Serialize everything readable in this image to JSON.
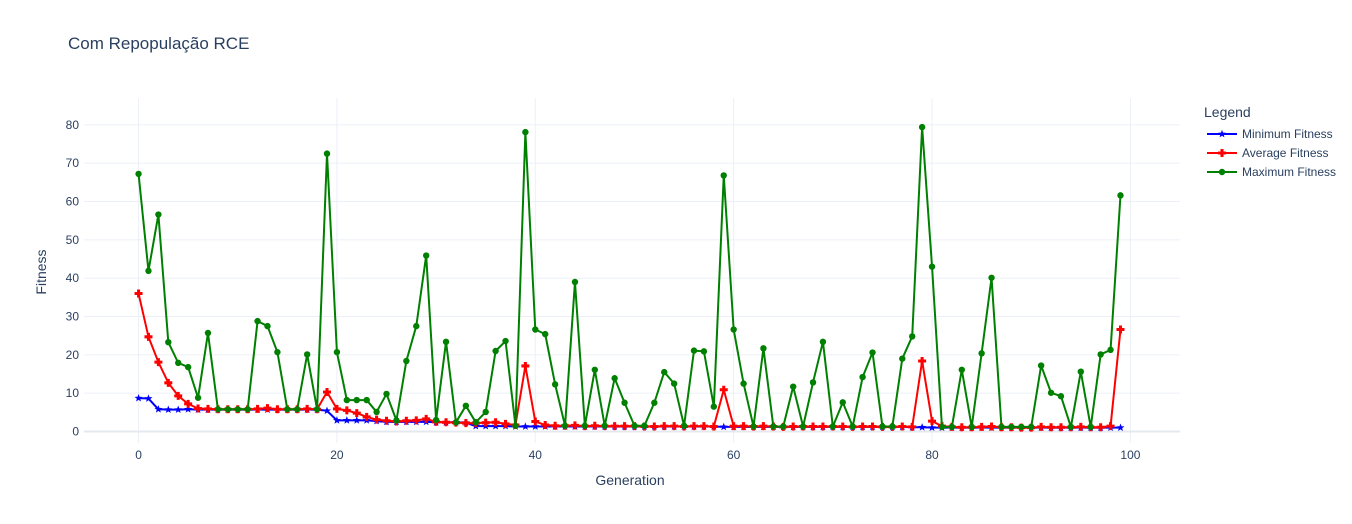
{
  "chart_data": {
    "type": "line",
    "title": "Com Repopulação RCE",
    "xlabel": "Generation",
    "ylabel": "Fitness",
    "xlim": [
      -5.5,
      105
    ],
    "ylim": [
      -3,
      87
    ],
    "xticks": [
      0,
      20,
      40,
      60,
      80,
      100
    ],
    "yticks": [
      0,
      10,
      20,
      30,
      40,
      50,
      60,
      70,
      80
    ],
    "grid": true,
    "legend_title": "Legend",
    "legend_position": "right",
    "series": [
      {
        "name": "Minimum Fitness",
        "color": "#0000ff",
        "marker": "star",
        "y": [
          8.7,
          8.6,
          5.8,
          5.7,
          5.7,
          5.8,
          5.7,
          5.7,
          5.7,
          5.7,
          5.7,
          5.7,
          5.7,
          5.7,
          5.7,
          5.7,
          5.7,
          5.7,
          5.7,
          5.4,
          2.9,
          2.9,
          2.9,
          2.9,
          2.7,
          2.5,
          2.5,
          2.5,
          2.5,
          2.5,
          2.4,
          2.4,
          2.4,
          2.3,
          1.4,
          1.4,
          1.4,
          1.4,
          1.3,
          1.3,
          1.3,
          1.3,
          1.3,
          1.3,
          1.3,
          1.3,
          1.3,
          1.3,
          1.3,
          1.3,
          1.3,
          1.3,
          1.3,
          1.3,
          1.3,
          1.3,
          1.3,
          1.3,
          1.3,
          1.2,
          1.2,
          1.2,
          1.2,
          1.2,
          1.2,
          1.2,
          1.2,
          1.2,
          1.2,
          1.2,
          1.2,
          1.2,
          1.2,
          1.2,
          1.2,
          1.2,
          1.2,
          1.2,
          1.1,
          1.1,
          1.0,
          1.0,
          1.0,
          1.0,
          1.0,
          1.0,
          1.0,
          1.0,
          1.0,
          1.0,
          1.0,
          1.0,
          1.0,
          1.0,
          1.0,
          1.0,
          1.0,
          1.0,
          1.0,
          1.0
        ]
      },
      {
        "name": "Average Fitness",
        "color": "#ff0000",
        "marker": "cross",
        "y": [
          36,
          24.7,
          18.1,
          12.7,
          9.3,
          7.2,
          6.0,
          5.9,
          5.8,
          5.8,
          5.8,
          5.8,
          5.9,
          6.1,
          5.8,
          5.8,
          5.8,
          5.9,
          5.8,
          10.3,
          5.9,
          5.5,
          4.8,
          3.8,
          3.1,
          2.8,
          2.6,
          2.8,
          2.9,
          3.3,
          2.5,
          2.4,
          2.3,
          2.2,
          2.2,
          2.3,
          2.4,
          2.0,
          1.7,
          17.1,
          2.6,
          1.7,
          1.5,
          1.5,
          1.6,
          1.4,
          1.5,
          1.4,
          1.4,
          1.4,
          1.4,
          1.3,
          1.3,
          1.4,
          1.4,
          1.3,
          1.4,
          1.4,
          1.3,
          10.9,
          1.4,
          1.4,
          1.3,
          1.4,
          1.3,
          1.2,
          1.3,
          1.3,
          1.3,
          1.3,
          1.3,
          1.3,
          1.2,
          1.3,
          1.3,
          1.2,
          1.2,
          1.3,
          1.2,
          18.4,
          2.7,
          1.4,
          1.2,
          1.1,
          1.1,
          1.2,
          1.3,
          1.1,
          1.1,
          1.0,
          1.0,
          1.2,
          1.1,
          1.1,
          1.1,
          1.2,
          1.1,
          1.1,
          1.4,
          26.6
        ]
      },
      {
        "name": "Maximum Fitness",
        "color": "#008000",
        "marker": "circle",
        "y": [
          67.2,
          41.9,
          56.6,
          23.3,
          17.9,
          16.8,
          8.8,
          25.7,
          5.8,
          5.8,
          5.8,
          5.8,
          28.8,
          27.5,
          20.7,
          5.8,
          5.8,
          20.1,
          5.8,
          72.5,
          20.7,
          8.2,
          8.2,
          8.2,
          5.1,
          9.8,
          2.9,
          18.4,
          27.5,
          45.9,
          3.0,
          23.4,
          2.4,
          6.7,
          2.4,
          5.1,
          21.0,
          23.6,
          1.5,
          78.1,
          26.6,
          25.4,
          12.3,
          1.5,
          39.0,
          1.5,
          16.1,
          1.5,
          13.9,
          7.5,
          1.5,
          1.5,
          7.5,
          15.5,
          12.5,
          1.5,
          21.1,
          20.9,
          6.5,
          66.8,
          26.6,
          12.5,
          1.3,
          21.7,
          1.3,
          1.3,
          11.7,
          1.3,
          12.8,
          23.4,
          1.3,
          7.6,
          1.3,
          14.2,
          20.6,
          1.3,
          1.3,
          19.0,
          24.8,
          79.4,
          43.0,
          1.2,
          1.2,
          16.1,
          1.2,
          20.4,
          40.1,
          1.2,
          1.2,
          1.2,
          1.2,
          17.2,
          10.1,
          9.2,
          1.2,
          15.6,
          1.2,
          20.1,
          21.3,
          61.6
        ]
      }
    ]
  }
}
